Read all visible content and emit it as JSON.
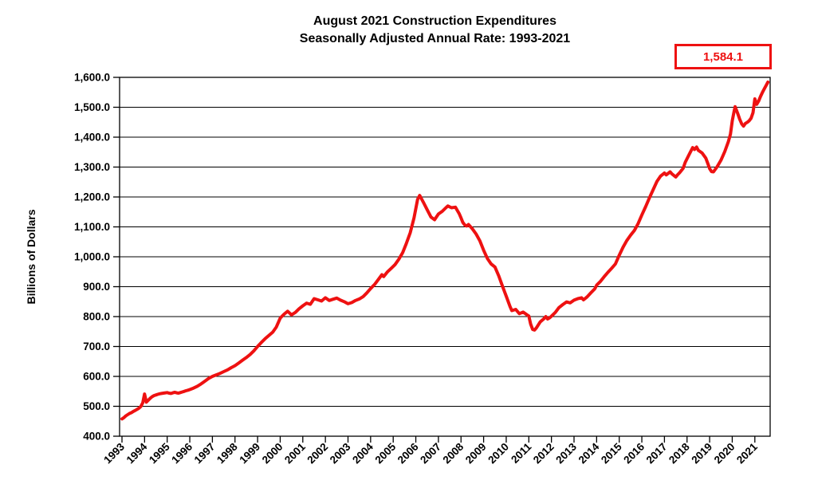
{
  "title": {
    "line1": "August 2021 Construction Expenditures",
    "line2": "Seasonally Adjusted Annual Rate: 1993-2021"
  },
  "annotation": {
    "latest_value": "1,584.1"
  },
  "y_axis": {
    "label": "Billions of Dollars",
    "min": 400,
    "max": 1600,
    "step": 100,
    "tick_labels_top_to_bottom": [
      "1,600.0",
      "1,500.0",
      "1,400.0",
      "1,300.0",
      "1,200.0",
      "1,100.0",
      "1,000.0",
      "900.0",
      "800.0",
      "700.0",
      "600.0",
      "500.0",
      "400.0"
    ]
  },
  "x_axis": {
    "tick_labels": [
      "1993",
      "1994",
      "1995",
      "1996",
      "1997",
      "1998",
      "1999",
      "2000",
      "2001",
      "2002",
      "2003",
      "2004",
      "2005",
      "2006",
      "2007",
      "2008",
      "2009",
      "2010",
      "2011",
      "2012",
      "2013",
      "2014",
      "2015",
      "2016",
      "2017",
      "2018",
      "2019",
      "2020",
      "2021"
    ]
  },
  "colors": {
    "line": "#EE1111",
    "annotation_border": "#EE1111",
    "annotation_text": "#EE1111",
    "axis": "#000000",
    "grid": "#000000",
    "background": "#ffffff",
    "text": "#000000"
  },
  "chart_data": {
    "type": "line",
    "title": "August 2021 Construction Expenditures — Seasonally Adjusted Annual Rate: 1993-2021",
    "xlabel": "",
    "ylabel": "Billions of Dollars",
    "ylim": [
      400,
      1600
    ],
    "xlim": [
      1993,
      2021.8
    ],
    "grid": "horizontal",
    "legend_position": "none",
    "last_point_annotation": 1584.1,
    "series": [
      {
        "name": "construction-expenditures",
        "points": [
          [
            1993.0,
            458
          ],
          [
            1993.08,
            462
          ],
          [
            1993.17,
            468
          ],
          [
            1993.25,
            472
          ],
          [
            1993.33,
            476
          ],
          [
            1993.42,
            479
          ],
          [
            1993.5,
            483
          ],
          [
            1993.58,
            486
          ],
          [
            1993.67,
            490
          ],
          [
            1993.75,
            494
          ],
          [
            1993.83,
            499
          ],
          [
            1993.92,
            512
          ],
          [
            1994.0,
            541
          ],
          [
            1994.08,
            514
          ],
          [
            1994.17,
            521
          ],
          [
            1994.25,
            527
          ],
          [
            1994.33,
            532
          ],
          [
            1994.42,
            536
          ],
          [
            1994.5,
            538
          ],
          [
            1994.58,
            540
          ],
          [
            1994.67,
            542
          ],
          [
            1994.75,
            543
          ],
          [
            1994.83,
            544
          ],
          [
            1994.92,
            545
          ],
          [
            1995.0,
            546
          ],
          [
            1995.08,
            544
          ],
          [
            1995.17,
            543
          ],
          [
            1995.25,
            545
          ],
          [
            1995.33,
            547
          ],
          [
            1995.42,
            545
          ],
          [
            1995.5,
            544
          ],
          [
            1995.58,
            546
          ],
          [
            1995.67,
            548
          ],
          [
            1995.75,
            550
          ],
          [
            1995.83,
            552
          ],
          [
            1995.92,
            554
          ],
          [
            1996.0,
            556
          ],
          [
            1996.17,
            561
          ],
          [
            1996.33,
            567
          ],
          [
            1996.5,
            575
          ],
          [
            1996.67,
            584
          ],
          [
            1996.83,
            593
          ],
          [
            1997.0,
            600
          ],
          [
            1997.17,
            605
          ],
          [
            1997.33,
            610
          ],
          [
            1997.5,
            616
          ],
          [
            1997.67,
            622
          ],
          [
            1997.83,
            629
          ],
          [
            1998.0,
            636
          ],
          [
            1998.17,
            645
          ],
          [
            1998.33,
            654
          ],
          [
            1998.5,
            663
          ],
          [
            1998.67,
            673
          ],
          [
            1998.83,
            685
          ],
          [
            1999.0,
            700
          ],
          [
            1999.17,
            714
          ],
          [
            1999.33,
            726
          ],
          [
            1999.5,
            737
          ],
          [
            1999.67,
            748
          ],
          [
            1999.83,
            765
          ],
          [
            2000.0,
            795
          ],
          [
            2000.17,
            808
          ],
          [
            2000.33,
            818
          ],
          [
            2000.5,
            806
          ],
          [
            2000.67,
            814
          ],
          [
            2000.83,
            826
          ],
          [
            2001.0,
            836
          ],
          [
            2001.17,
            845
          ],
          [
            2001.33,
            841
          ],
          [
            2001.5,
            860
          ],
          [
            2001.67,
            856
          ],
          [
            2001.83,
            852
          ],
          [
            2002.0,
            863
          ],
          [
            2002.17,
            854
          ],
          [
            2002.33,
            858
          ],
          [
            2002.5,
            862
          ],
          [
            2002.67,
            855
          ],
          [
            2002.83,
            850
          ],
          [
            2003.0,
            843
          ],
          [
            2003.17,
            847
          ],
          [
            2003.33,
            854
          ],
          [
            2003.5,
            859
          ],
          [
            2003.67,
            867
          ],
          [
            2003.83,
            879
          ],
          [
            2004.0,
            894
          ],
          [
            2004.17,
            907
          ],
          [
            2004.33,
            923
          ],
          [
            2004.5,
            940
          ],
          [
            2004.58,
            934
          ],
          [
            2004.75,
            950
          ],
          [
            2004.92,
            962
          ],
          [
            2005.08,
            974
          ],
          [
            2005.25,
            992
          ],
          [
            2005.42,
            1014
          ],
          [
            2005.58,
            1044
          ],
          [
            2005.75,
            1080
          ],
          [
            2005.92,
            1130
          ],
          [
            2006.08,
            1192
          ],
          [
            2006.17,
            1205
          ],
          [
            2006.33,
            1183
          ],
          [
            2006.5,
            1158
          ],
          [
            2006.67,
            1133
          ],
          [
            2006.83,
            1124
          ],
          [
            2007.0,
            1143
          ],
          [
            2007.17,
            1152
          ],
          [
            2007.33,
            1164
          ],
          [
            2007.42,
            1170
          ],
          [
            2007.58,
            1164
          ],
          [
            2007.75,
            1166
          ],
          [
            2007.92,
            1144
          ],
          [
            2008.0,
            1130
          ],
          [
            2008.08,
            1115
          ],
          [
            2008.17,
            1106
          ],
          [
            2008.25,
            1103
          ],
          [
            2008.33,
            1108
          ],
          [
            2008.5,
            1094
          ],
          [
            2008.67,
            1076
          ],
          [
            2008.83,
            1054
          ],
          [
            2009.0,
            1022
          ],
          [
            2009.17,
            994
          ],
          [
            2009.33,
            976
          ],
          [
            2009.5,
            966
          ],
          [
            2009.67,
            936
          ],
          [
            2009.83,
            903
          ],
          [
            2010.0,
            868
          ],
          [
            2010.17,
            833
          ],
          [
            2010.25,
            820
          ],
          [
            2010.42,
            824
          ],
          [
            2010.58,
            810
          ],
          [
            2010.75,
            815
          ],
          [
            2010.92,
            806
          ],
          [
            2011.0,
            802
          ],
          [
            2011.08,
            775
          ],
          [
            2011.17,
            757
          ],
          [
            2011.25,
            755
          ],
          [
            2011.33,
            762
          ],
          [
            2011.5,
            782
          ],
          [
            2011.67,
            793
          ],
          [
            2011.75,
            800
          ],
          [
            2011.83,
            792
          ],
          [
            2011.92,
            796
          ],
          [
            2012.0,
            801
          ],
          [
            2012.17,
            814
          ],
          [
            2012.33,
            830
          ],
          [
            2012.5,
            840
          ],
          [
            2012.67,
            849
          ],
          [
            2012.83,
            846
          ],
          [
            2013.0,
            855
          ],
          [
            2013.17,
            860
          ],
          [
            2013.33,
            863
          ],
          [
            2013.42,
            856
          ],
          [
            2013.58,
            866
          ],
          [
            2013.75,
            880
          ],
          [
            2013.92,
            893
          ],
          [
            2014.0,
            905
          ],
          [
            2014.17,
            918
          ],
          [
            2014.33,
            933
          ],
          [
            2014.5,
            948
          ],
          [
            2014.67,
            962
          ],
          [
            2014.83,
            976
          ],
          [
            2015.0,
            1005
          ],
          [
            2015.17,
            1032
          ],
          [
            2015.33,
            1054
          ],
          [
            2015.5,
            1072
          ],
          [
            2015.67,
            1088
          ],
          [
            2015.83,
            1110
          ],
          [
            2016.0,
            1140
          ],
          [
            2016.17,
            1168
          ],
          [
            2016.33,
            1196
          ],
          [
            2016.5,
            1224
          ],
          [
            2016.67,
            1252
          ],
          [
            2016.83,
            1270
          ],
          [
            2017.0,
            1280
          ],
          [
            2017.08,
            1274
          ],
          [
            2017.25,
            1284
          ],
          [
            2017.33,
            1277
          ],
          [
            2017.5,
            1267
          ],
          [
            2017.58,
            1274
          ],
          [
            2017.67,
            1281
          ],
          [
            2017.83,
            1296
          ],
          [
            2017.92,
            1316
          ],
          [
            2018.08,
            1340
          ],
          [
            2018.25,
            1365
          ],
          [
            2018.33,
            1359
          ],
          [
            2018.42,
            1367
          ],
          [
            2018.5,
            1356
          ],
          [
            2018.67,
            1347
          ],
          [
            2018.83,
            1330
          ],
          [
            2018.92,
            1312
          ],
          [
            2019.0,
            1295
          ],
          [
            2019.08,
            1285
          ],
          [
            2019.17,
            1284
          ],
          [
            2019.33,
            1301
          ],
          [
            2019.5,
            1323
          ],
          [
            2019.67,
            1352
          ],
          [
            2019.83,
            1385
          ],
          [
            2019.92,
            1410
          ],
          [
            2020.0,
            1455
          ],
          [
            2020.08,
            1485
          ],
          [
            2020.13,
            1502
          ],
          [
            2020.25,
            1478
          ],
          [
            2020.33,
            1460
          ],
          [
            2020.42,
            1444
          ],
          [
            2020.5,
            1437
          ],
          [
            2020.58,
            1446
          ],
          [
            2020.67,
            1450
          ],
          [
            2020.75,
            1455
          ],
          [
            2020.83,
            1463
          ],
          [
            2020.92,
            1482
          ],
          [
            2021.0,
            1528
          ],
          [
            2021.08,
            1510
          ],
          [
            2021.17,
            1521
          ],
          [
            2021.25,
            1536
          ],
          [
            2021.33,
            1549
          ],
          [
            2021.42,
            1562
          ],
          [
            2021.5,
            1573
          ],
          [
            2021.58,
            1584.1
          ]
        ]
      }
    ]
  }
}
